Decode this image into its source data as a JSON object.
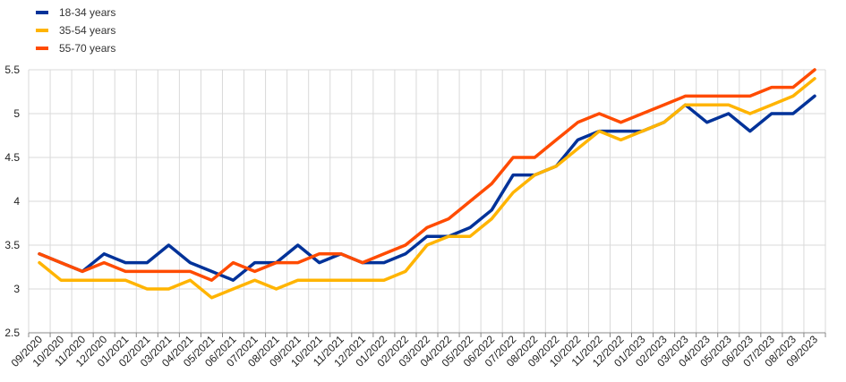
{
  "chart_data": {
    "type": "line",
    "title": "",
    "xlabel": "",
    "ylabel": "",
    "ylim": [
      2.5,
      5.5
    ],
    "yticks": [
      2.5,
      3,
      3.5,
      4,
      4.5,
      5,
      5.5
    ],
    "ytick_labels": [
      "2.5",
      "3",
      "3.5",
      "4",
      "4.5",
      "5",
      "5.5"
    ],
    "grid": true,
    "legend_position": "top-left",
    "categories": [
      "09/2020",
      "10/2020",
      "11/2020",
      "12/2020",
      "01/2021",
      "02/2021",
      "03/2021",
      "04/2021",
      "05/2021",
      "06/2021",
      "07/2021",
      "08/2021",
      "09/2021",
      "10/2021",
      "11/2021",
      "12/2021",
      "01/2022",
      "02/2022",
      "03/2022",
      "04/2022",
      "05/2022",
      "06/2022",
      "07/2022",
      "08/2022",
      "09/2022",
      "10/2022",
      "11/2022",
      "12/2022",
      "01/2023",
      "02/2023",
      "03/2023",
      "04/2023",
      "05/2023",
      "06/2023",
      "07/2023",
      "08/2023",
      "09/2023"
    ],
    "series": [
      {
        "name": "18-34 years",
        "color": "#003299",
        "values": [
          3.4,
          3.3,
          3.2,
          3.4,
          3.3,
          3.3,
          3.5,
          3.3,
          3.2,
          3.1,
          3.3,
          3.3,
          3.5,
          3.3,
          3.4,
          3.3,
          3.3,
          3.4,
          3.6,
          3.6,
          3.7,
          3.9,
          4.3,
          4.3,
          4.4,
          4.7,
          4.8,
          4.8,
          4.8,
          4.9,
          5.1,
          4.9,
          5.0,
          4.8,
          5.0,
          5.0,
          5.2
        ]
      },
      {
        "name": "35-54 years",
        "color": "#FFB400",
        "values": [
          3.3,
          3.1,
          3.1,
          3.1,
          3.1,
          3.0,
          3.0,
          3.1,
          2.9,
          3.0,
          3.1,
          3.0,
          3.1,
          3.1,
          3.1,
          3.1,
          3.1,
          3.2,
          3.5,
          3.6,
          3.6,
          3.8,
          4.1,
          4.3,
          4.4,
          4.6,
          4.8,
          4.7,
          4.8,
          4.9,
          5.1,
          5.1,
          5.1,
          5.0,
          5.1,
          5.2,
          5.4
        ]
      },
      {
        "name": "55-70 years",
        "color": "#FF4B00",
        "values": [
          3.4,
          3.3,
          3.2,
          3.3,
          3.2,
          3.2,
          3.2,
          3.2,
          3.1,
          3.3,
          3.2,
          3.3,
          3.3,
          3.4,
          3.4,
          3.3,
          3.4,
          3.5,
          3.7,
          3.8,
          4.0,
          4.2,
          4.5,
          4.5,
          4.7,
          4.9,
          5.0,
          4.9,
          5.0,
          5.1,
          5.2,
          5.2,
          5.2,
          5.2,
          5.3,
          5.3,
          5.5
        ]
      }
    ]
  }
}
